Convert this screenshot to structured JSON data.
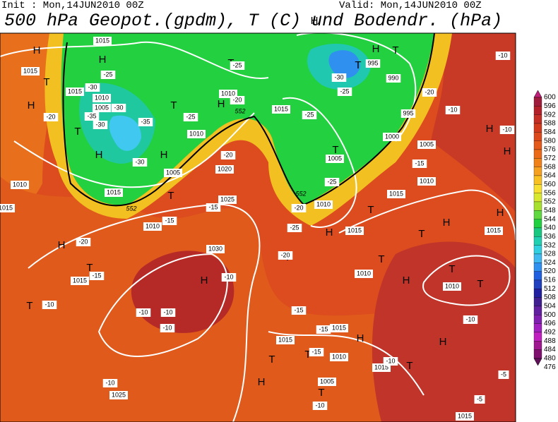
{
  "header": {
    "init": "Init : Mon,14JUN2010 00Z",
    "valid": "Valid: Mon,14JUN2010 00Z",
    "title": "500 hPa Geopot.(gpdm), T (C) und Bodendr. (hPa)"
  },
  "colorbar": {
    "labels": [
      600,
      596,
      592,
      588,
      584,
      580,
      576,
      572,
      568,
      564,
      560,
      556,
      552,
      548,
      544,
      540,
      536,
      532,
      528,
      524,
      520,
      516,
      512,
      508,
      504,
      500,
      496,
      492,
      488,
      484,
      480,
      476
    ]
  },
  "map": {
    "pressure_centers": [
      "H",
      "H",
      "H",
      "H",
      "H",
      "H",
      "H",
      "H",
      "H",
      "H",
      "H",
      "H",
      "H",
      "H",
      "H",
      "H",
      "H",
      "H",
      "H",
      "T",
      "T",
      "T",
      "T",
      "T",
      "T",
      "T",
      "T",
      "T",
      "T",
      "T",
      "T",
      "T",
      "T",
      "T",
      "T",
      "T",
      "T",
      "T",
      "T"
    ],
    "isobar_labels": [
      "1015",
      "1015",
      "1015",
      "1010",
      "1005",
      "1010",
      "1010",
      "1005",
      "1020",
      "1015",
      "995",
      "990",
      "995",
      "1000",
      "1005",
      "1005",
      "1010",
      "1010",
      "1015",
      "1015",
      "1010",
      "1015",
      "1010",
      "1010",
      "1015",
      "1010",
      "1025",
      "1030",
      "1015",
      "1015",
      "1015",
      "1015",
      "1010",
      "1015",
      "1005",
      "1025",
      "1015"
    ],
    "temperature_labels": [
      "-20",
      "-25",
      "-30",
      "-35",
      "-30",
      "-30",
      "-35",
      "-30",
      "-25",
      "-20",
      "-25",
      "-30",
      "-25",
      "-25",
      "-20",
      "-10",
      "-10",
      "-10",
      "-15",
      "-20",
      "-25",
      "-20",
      "-25",
      "-15",
      "-15",
      "-20",
      "-15",
      "-10",
      "-10",
      "-10",
      "-10",
      "-10",
      "-15",
      "-15",
      "-15",
      "-10",
      "-10",
      "-10",
      "-10",
      "-5",
      "-5",
      "-20"
    ],
    "contour_labels": [
      "552",
      "552",
      "552"
    ]
  }
}
